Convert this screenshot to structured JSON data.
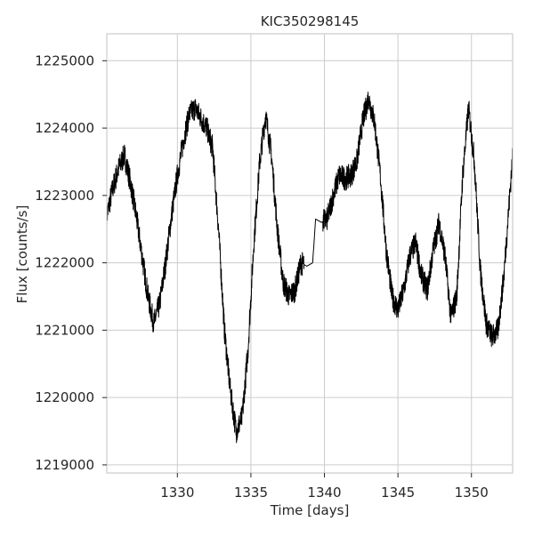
{
  "chart_data": {
    "type": "line",
    "title": "KIC350298145",
    "xlabel": "Time [days]",
    "ylabel": "Flux [counts/s]",
    "xlim": [
      1325.2,
      1352.8
    ],
    "ylim": [
      1218880,
      1225400
    ],
    "grid": true,
    "xticks": [
      1330,
      1335,
      1340,
      1345,
      1350
    ],
    "xtick_labels": [
      "1330",
      "1335",
      "1340",
      "1345",
      "1350"
    ],
    "yticks": [
      1219000,
      1220000,
      1221000,
      1222000,
      1223000,
      1224000,
      1225000
    ],
    "ytick_labels": [
      "1219000",
      "1220000",
      "1221000",
      "1222000",
      "1223000",
      "1224000",
      "1225000"
    ],
    "series": [
      {
        "color": "#000000",
        "x": [
          1325.2,
          1325.6,
          1326.0,
          1326.4,
          1326.8,
          1327.2,
          1327.6,
          1328.0,
          1328.4,
          1328.8,
          1329.2,
          1329.6,
          1330.0,
          1330.4,
          1330.8,
          1331.2,
          1331.6,
          1332.0,
          1332.4,
          1332.8,
          1333.2,
          1333.6,
          1334.0,
          1334.4,
          1334.8,
          1335.2,
          1335.6,
          1336.0,
          1336.4,
          1336.8,
          1337.2,
          1337.6,
          1338.0,
          1338.4,
          1338.8,
          1339.2,
          1339.4,
          1339.8,
          1340.2,
          1340.6,
          1341.0,
          1341.4,
          1341.8,
          1342.2,
          1342.6,
          1343.0,
          1343.4,
          1343.8,
          1344.2,
          1344.6,
          1345.0,
          1345.4,
          1345.8,
          1346.2,
          1346.6,
          1347.0,
          1347.4,
          1347.8,
          1348.2,
          1348.6,
          1349.0,
          1349.4,
          1349.8,
          1350.2,
          1350.6,
          1351.0,
          1351.4,
          1351.8,
          1352.2,
          1352.8
        ],
        "y": [
          1222700,
          1223100,
          1223400,
          1223600,
          1223200,
          1222700,
          1222100,
          1221500,
          1221100,
          1221400,
          1222000,
          1222700,
          1223300,
          1223800,
          1224200,
          1224300,
          1224150,
          1224000,
          1223700,
          1222500,
          1221000,
          1220100,
          1219500,
          1219700,
          1220700,
          1222300,
          1223500,
          1224200,
          1223600,
          1222500,
          1221700,
          1221500,
          1221600,
          1222000,
          1221950,
          1222000,
          1222650,
          1222600,
          1222650,
          1223000,
          1223300,
          1223250,
          1223300,
          1223500,
          1224100,
          1224450,
          1224100,
          1223300,
          1222200,
          1221500,
          1221300,
          1221600,
          1222100,
          1222300,
          1221800,
          1221600,
          1222200,
          1222600,
          1222100,
          1221200,
          1221500,
          1223300,
          1224300,
          1223500,
          1221900,
          1221100,
          1220900,
          1221000,
          1221800,
          1223600
        ]
      }
    ]
  }
}
